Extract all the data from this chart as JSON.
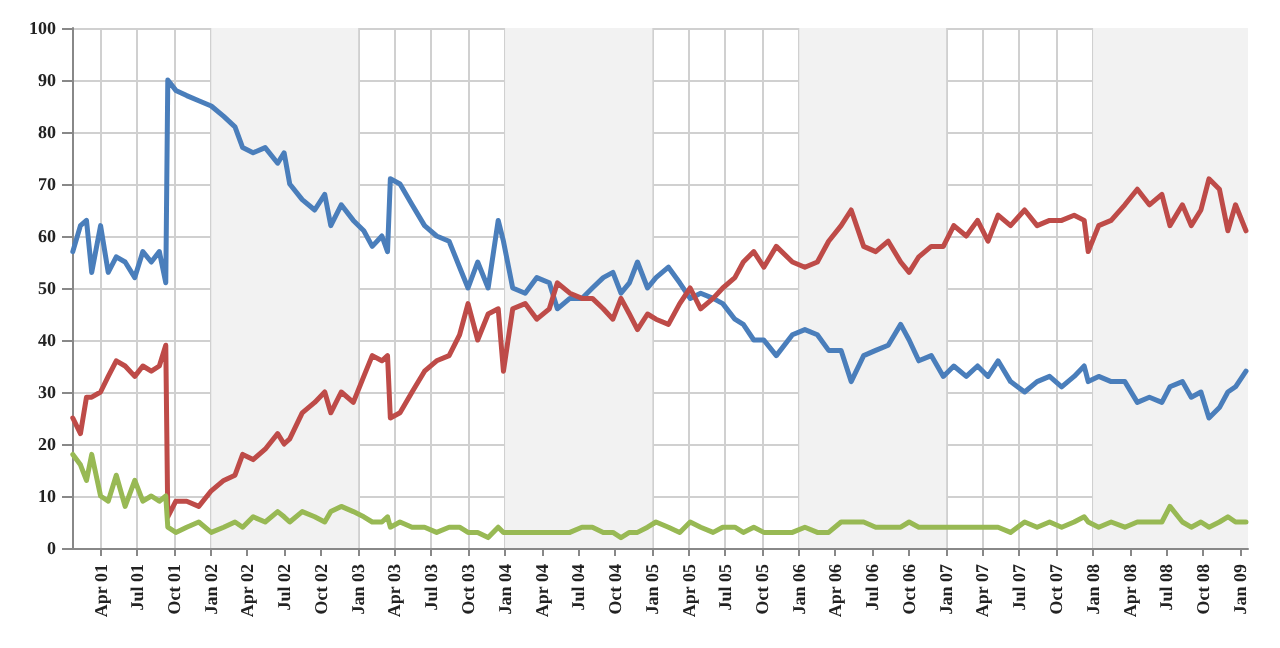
{
  "chart_data": {
    "type": "line",
    "x": [
      "2001-01-22",
      "2001-02-10",
      "2001-02-25",
      "2001-03-10",
      "2001-04-01",
      "2001-04-20",
      "2001-05-10",
      "2001-06-01",
      "2001-06-25",
      "2001-07-15",
      "2001-08-05",
      "2001-08-25",
      "2001-09-10",
      "2001-09-15",
      "2001-10-05",
      "2001-11-01",
      "2001-12-01",
      "2002-01-01",
      "2002-02-01",
      "2002-03-01",
      "2002-03-20",
      "2002-04-15",
      "2002-05-15",
      "2002-06-15",
      "2002-07-01",
      "2002-07-15",
      "2002-08-15",
      "2002-09-15",
      "2002-10-10",
      "2002-10-25",
      "2002-11-20",
      "2002-12-20",
      "2003-01-15",
      "2003-02-05",
      "2003-03-01",
      "2003-03-15",
      "2003-03-22",
      "2003-04-15",
      "2003-05-15",
      "2003-06-15",
      "2003-07-15",
      "2003-08-15",
      "2003-09-10",
      "2003-10-01",
      "2003-10-25",
      "2003-11-20",
      "2003-12-15",
      "2003-12-28",
      "2004-01-20",
      "2004-02-20",
      "2004-03-20",
      "2004-04-20",
      "2004-05-10",
      "2004-06-10",
      "2004-07-10",
      "2004-08-05",
      "2004-09-01",
      "2004-09-25",
      "2004-10-15",
      "2004-11-05",
      "2004-11-25",
      "2004-12-20",
      "2005-01-10",
      "2005-02-10",
      "2005-03-10",
      "2005-04-05",
      "2005-05-01",
      "2005-06-01",
      "2005-06-25",
      "2005-07-25",
      "2005-08-15",
      "2005-09-10",
      "2005-10-05",
      "2005-11-05",
      "2005-12-15",
      "2006-01-15",
      "2006-02-15",
      "2006-03-15",
      "2006-04-15",
      "2006-05-10",
      "2006-06-10",
      "2006-07-10",
      "2006-08-10",
      "2006-09-10",
      "2006-10-01",
      "2006-10-25",
      "2006-11-25",
      "2006-12-25",
      "2007-01-20",
      "2007-02-20",
      "2007-03-20",
      "2007-04-15",
      "2007-05-10",
      "2007-06-10",
      "2007-07-15",
      "2007-08-15",
      "2007-09-15",
      "2007-10-15",
      "2007-11-15",
      "2007-12-10",
      "2007-12-20",
      "2008-01-15",
      "2008-02-15",
      "2008-03-20",
      "2008-04-20",
      "2008-05-20",
      "2008-06-20",
      "2008-07-10",
      "2008-08-10",
      "2008-09-01",
      "2008-09-25",
      "2008-10-15",
      "2008-11-10",
      "2008-12-01",
      "2008-12-20",
      "2009-01-15"
    ],
    "series": [
      {
        "color": "#4a7ebb",
        "values": [
          57,
          62,
          63,
          53,
          62,
          53,
          56,
          55,
          52,
          57,
          55,
          57,
          51,
          90,
          88,
          87,
          86,
          85,
          83,
          81,
          77,
          76,
          77,
          74,
          76,
          70,
          67,
          65,
          68,
          62,
          66,
          63,
          61,
          58,
          60,
          57,
          71,
          70,
          66,
          62,
          60,
          59,
          54,
          50,
          55,
          50,
          63,
          59,
          50,
          49,
          52,
          51,
          46,
          48,
          48,
          50,
          52,
          53,
          49,
          51,
          55,
          50,
          52,
          54,
          51,
          48,
          49,
          48,
          47,
          44,
          43,
          40,
          40,
          37,
          41,
          42,
          41,
          38,
          38,
          32,
          37,
          38,
          39,
          43,
          40,
          36,
          37,
          33,
          35,
          33,
          35,
          33,
          36,
          32,
          30,
          32,
          33,
          31,
          33,
          35,
          32,
          33,
          32,
          32,
          28,
          29,
          28,
          31,
          32,
          29,
          30,
          25,
          27,
          30,
          31,
          34
        ]
      },
      {
        "color": "#be4b48",
        "values": [
          25,
          22,
          29,
          29,
          30,
          33,
          36,
          35,
          33,
          35,
          34,
          35,
          39,
          6,
          9,
          9,
          8,
          11,
          13,
          14,
          18,
          17,
          19,
          22,
          20,
          21,
          26,
          28,
          30,
          26,
          30,
          28,
          33,
          37,
          36,
          37,
          25,
          26,
          30,
          34,
          36,
          37,
          41,
          47,
          40,
          45,
          46,
          34,
          46,
          47,
          44,
          46,
          51,
          49,
          48,
          48,
          46,
          44,
          48,
          45,
          42,
          45,
          44,
          43,
          47,
          50,
          46,
          48,
          50,
          52,
          55,
          57,
          54,
          58,
          55,
          54,
          55,
          59,
          62,
          65,
          58,
          57,
          59,
          55,
          53,
          56,
          58,
          58,
          62,
          60,
          63,
          59,
          64,
          62,
          65,
          62,
          63,
          63,
          64,
          63,
          57,
          62,
          63,
          66,
          69,
          66,
          68,
          62,
          66,
          62,
          65,
          71,
          69,
          61,
          66,
          61
        ]
      },
      {
        "color": "#98b954",
        "values": [
          18,
          16,
          13,
          18,
          10,
          9,
          14,
          8,
          13,
          9,
          10,
          9,
          10,
          4,
          3,
          4,
          5,
          3,
          4,
          5,
          4,
          6,
          5,
          7,
          6,
          5,
          7,
          6,
          5,
          7,
          8,
          7,
          6,
          5,
          5,
          6,
          4,
          5,
          4,
          4,
          3,
          4,
          4,
          3,
          3,
          2,
          4,
          3,
          3,
          3,
          3,
          3,
          3,
          3,
          4,
          4,
          3,
          3,
          2,
          3,
          3,
          4,
          5,
          4,
          3,
          5,
          4,
          3,
          4,
          4,
          3,
          4,
          3,
          3,
          3,
          4,
          3,
          3,
          5,
          5,
          5,
          4,
          4,
          4,
          5,
          4,
          4,
          4,
          4,
          4,
          4,
          4,
          4,
          3,
          5,
          4,
          5,
          4,
          5,
          6,
          5,
          4,
          5,
          4,
          5,
          5,
          5,
          8,
          5,
          4,
          5,
          4,
          5,
          6,
          5,
          5
        ]
      }
    ],
    "xlim": [
      "2001-01-20",
      "2009-01-20"
    ],
    "xticks": [
      {
        "value": "2001-04-01",
        "label": "Apr 01"
      },
      {
        "value": "2001-07-01",
        "label": "Jul 01"
      },
      {
        "value": "2001-10-01",
        "label": "Oct 01"
      },
      {
        "value": "2002-01-01",
        "label": "Jan 02"
      },
      {
        "value": "2002-04-01",
        "label": "Apr 02"
      },
      {
        "value": "2002-07-01",
        "label": "Jul 02"
      },
      {
        "value": "2002-10-01",
        "label": "Oct 02"
      },
      {
        "value": "2003-01-01",
        "label": "Jan 03"
      },
      {
        "value": "2003-04-01",
        "label": "Apr 03"
      },
      {
        "value": "2003-07-01",
        "label": "Jul 03"
      },
      {
        "value": "2003-10-01",
        "label": "Oct 03"
      },
      {
        "value": "2004-01-01",
        "label": "Jan 04"
      },
      {
        "value": "2004-04-01",
        "label": "Apr 04"
      },
      {
        "value": "2004-07-01",
        "label": "Jul 04"
      },
      {
        "value": "2004-10-01",
        "label": "Oct 04"
      },
      {
        "value": "2005-01-01",
        "label": "Jan 05"
      },
      {
        "value": "2005-04-01",
        "label": "Apr 05"
      },
      {
        "value": "2005-07-01",
        "label": "Jul 05"
      },
      {
        "value": "2005-10-01",
        "label": "Oct 05"
      },
      {
        "value": "2006-01-01",
        "label": "Jan 06"
      },
      {
        "value": "2006-04-01",
        "label": "Apr 06"
      },
      {
        "value": "2006-07-01",
        "label": "Jul 06"
      },
      {
        "value": "2006-10-01",
        "label": "Oct 06"
      },
      {
        "value": "2007-01-01",
        "label": "Jan 07"
      },
      {
        "value": "2007-04-01",
        "label": "Apr 07"
      },
      {
        "value": "2007-07-01",
        "label": "Jul 07"
      },
      {
        "value": "2007-10-01",
        "label": "Oct 07"
      },
      {
        "value": "2008-01-01",
        "label": "Jan 08"
      },
      {
        "value": "2008-04-01",
        "label": "Apr 08"
      },
      {
        "value": "2008-07-01",
        "label": "Jul 08"
      },
      {
        "value": "2008-10-01",
        "label": "Oct 08"
      },
      {
        "value": "2009-01-01",
        "label": "Jan 09"
      }
    ],
    "ylim": [
      0,
      100
    ],
    "yticks": [
      0,
      10,
      20,
      30,
      40,
      50,
      60,
      70,
      80,
      90,
      100
    ],
    "bands": [
      {
        "axis": "x",
        "from": "2002-01-01",
        "to": "2003-01-01",
        "color": "#f2f2f2"
      },
      {
        "axis": "x",
        "from": "2004-01-01",
        "to": "2005-01-01",
        "color": "#f2f2f2"
      },
      {
        "axis": "x",
        "from": "2006-01-01",
        "to": "2007-01-01",
        "color": "#f2f2f2"
      },
      {
        "axis": "x",
        "from": "2008-01-01",
        "to": "2009-01-20",
        "color": "#f2f2f2"
      }
    ],
    "grid": true,
    "marker": "none",
    "line_style": "solid"
  }
}
